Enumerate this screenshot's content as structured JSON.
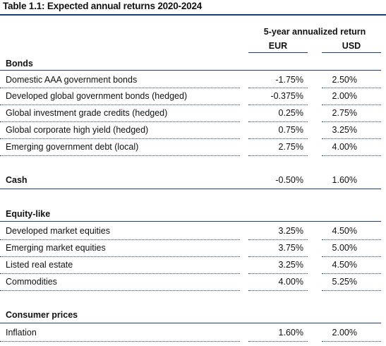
{
  "title": "Table 1.1: Expected annual returns 2020-2024",
  "header": {
    "group": "5-year annualized return",
    "col_eur": "EUR",
    "col_usd": "USD"
  },
  "sections": {
    "bonds": {
      "name": "Bonds",
      "rows": [
        {
          "label": "Domestic AAA government bonds",
          "eur": "-1.75%",
          "usd": "2.50%"
        },
        {
          "label": "Developed global government bonds (hedged)",
          "eur": "-0.375%",
          "usd": "2.00%"
        },
        {
          "label": "Global investment grade credits (hedged)",
          "eur": "0.25%",
          "usd": "2.75%"
        },
        {
          "label": "Global corporate high yield (hedged)",
          "eur": "0.75%",
          "usd": "3.25%"
        },
        {
          "label": "Emerging government debt (local)",
          "eur": "2.75%",
          "usd": "4.00%"
        }
      ]
    },
    "cash": {
      "name": "Cash",
      "eur": "-0.50%",
      "usd": "1.60%"
    },
    "equity": {
      "name": "Equity-like",
      "rows": [
        {
          "label": "Developed market equities",
          "eur": "3.25%",
          "usd": "4.50%"
        },
        {
          "label": "Emerging market equities",
          "eur": "3.75%",
          "usd": "5.00%"
        },
        {
          "label": "Listed real estate",
          "eur": "3.25%",
          "usd": "4.50%"
        },
        {
          "label": "Commodities",
          "eur": "4.00%",
          "usd": "5.25%"
        }
      ]
    },
    "consumer_prices": {
      "name": "Consumer prices",
      "rows": [
        {
          "label": "Inflation",
          "eur": "1.60%",
          "usd": "2.00%"
        }
      ]
    }
  }
}
